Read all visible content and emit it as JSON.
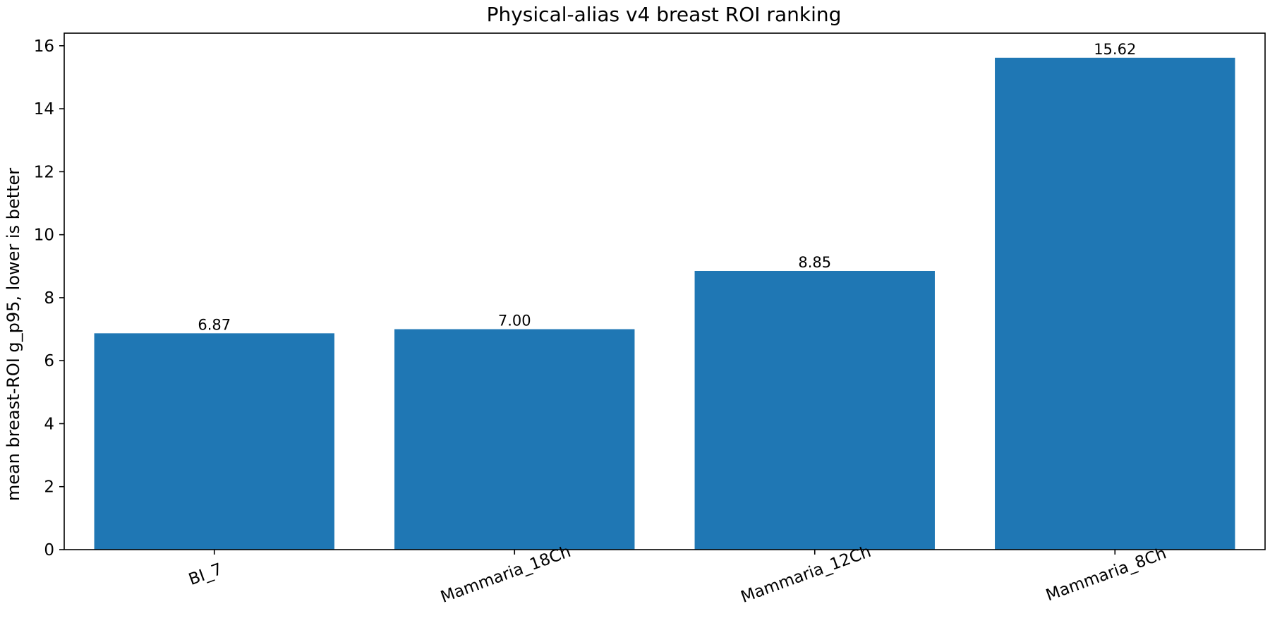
{
  "chart_data": {
    "type": "bar",
    "title": "Physical-alias v4 breast ROI ranking",
    "xlabel": "",
    "ylabel": "mean breast-ROI g_p95, lower is better",
    "categories": [
      "BI_7",
      "Mammaria_18Ch",
      "Mammaria_12Ch",
      "Mammaria_8Ch"
    ],
    "values": [
      6.87,
      7.0,
      8.85,
      15.62
    ],
    "value_labels": [
      "6.87",
      "7.00",
      "8.85",
      "15.62"
    ],
    "ylim": [
      0,
      16.4
    ],
    "yticks": [
      0,
      2,
      4,
      6,
      8,
      10,
      12,
      14,
      16
    ],
    "ytick_labels": [
      "0",
      "2",
      "4",
      "6",
      "8",
      "10",
      "12",
      "14",
      "16"
    ],
    "xtick_rotation_deg": -20,
    "grid": false,
    "legend": "none",
    "bar_color": "#1f77b4"
  }
}
